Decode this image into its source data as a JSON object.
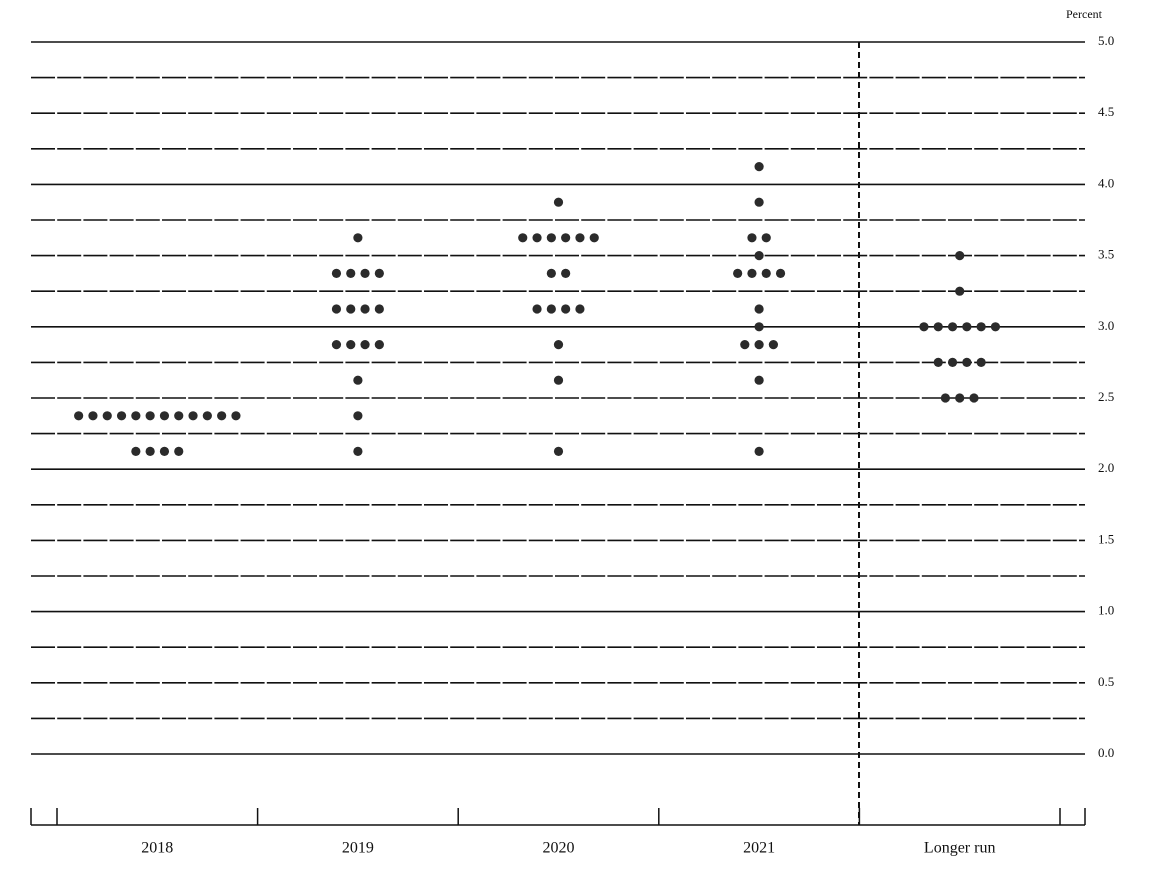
{
  "chart_data": {
    "type": "dot",
    "y_label": "Percent",
    "categories": [
      "2018",
      "2019",
      "2020",
      "2021",
      "Longer run"
    ],
    "values": [
      [
        2.375,
        2.375,
        2.375,
        2.375,
        2.375,
        2.375,
        2.375,
        2.375,
        2.375,
        2.375,
        2.375,
        2.375,
        2.125,
        2.125,
        2.125,
        2.125
      ],
      [
        3.625,
        3.375,
        3.375,
        3.375,
        3.375,
        3.125,
        3.125,
        3.125,
        3.125,
        2.875,
        2.875,
        2.875,
        2.875,
        2.625,
        2.375,
        2.125
      ],
      [
        3.875,
        3.625,
        3.625,
        3.625,
        3.625,
        3.625,
        3.625,
        3.375,
        3.375,
        3.125,
        3.125,
        3.125,
        3.125,
        2.875,
        2.625,
        2.125
      ],
      [
        4.125,
        3.875,
        3.625,
        3.625,
        3.5,
        3.375,
        3.375,
        3.375,
        3.375,
        3.125,
        3.0,
        2.875,
        2.875,
        2.875,
        2.625,
        2.125
      ],
      [
        3.5,
        3.25,
        3.0,
        3.0,
        3.0,
        3.0,
        3.0,
        3.0,
        2.75,
        2.75,
        2.75,
        2.75,
        2.5,
        2.5,
        2.5
      ]
    ],
    "color": "#2b2b2b",
    "ylim": [
      0,
      5
    ],
    "yticks": [
      {
        "value": 0,
        "label": "0.0"
      },
      {
        "value": 0.5,
        "label": "0.5"
      },
      {
        "value": 1,
        "label": "1.0"
      },
      {
        "value": 1.5,
        "label": "1.5"
      },
      {
        "value": 2,
        "label": "2.0"
      },
      {
        "value": 2.5,
        "label": "2.5"
      },
      {
        "value": 3,
        "label": "3.0"
      },
      {
        "value": 3.5,
        "label": "3.5"
      },
      {
        "value": 4,
        "label": "4.0"
      },
      {
        "value": 4.5,
        "label": "4.5"
      },
      {
        "value": 5,
        "label": "5.0"
      }
    ],
    "yticks_minor": [
      0.25,
      0.75,
      1.25,
      1.75,
      2.25,
      2.75,
      3.25,
      3.75,
      4.25,
      4.75
    ],
    "grid": true
  }
}
